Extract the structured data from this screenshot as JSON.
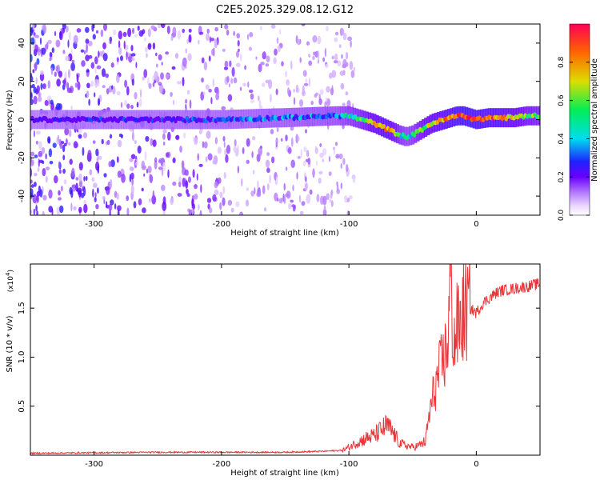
{
  "title": "C2E5.2025.329.08.12.G12",
  "chart_data": [
    {
      "type": "heatmap",
      "panel": "spectrogram",
      "xlabel": "Height of straight line (km)",
      "ylabel": "Frequency (Hz)",
      "xlim": [
        -350,
        50
      ],
      "ylim": [
        -50,
        50
      ],
      "xticks": [
        -300,
        -200,
        -100,
        0
      ],
      "xtick_labels": [
        "-300",
        "-200",
        "-100",
        "0"
      ],
      "yticks": [
        -40,
        -20,
        0,
        20,
        40
      ],
      "ytick_labels": [
        "-40",
        "-20",
        "0",
        "20",
        "40"
      ],
      "signal_track": {
        "x": [
          -350,
          -300,
          -250,
          -200,
          -150,
          -110,
          -100,
          -90,
          -80,
          -70,
          -60,
          -55,
          -50,
          -45,
          -40,
          -35,
          -30,
          -25,
          -20,
          -15,
          -10,
          -5,
          0,
          10,
          20,
          30,
          40,
          50
        ],
        "freq_hz": [
          0,
          0,
          0,
          0,
          1,
          2,
          2,
          0,
          -2,
          -5,
          -8,
          -9,
          -8,
          -6,
          -4,
          -2,
          -1,
          0,
          1,
          2,
          2,
          1,
          0,
          1,
          1,
          1,
          2,
          2
        ],
        "amplitude": [
          0.15,
          0.2,
          0.22,
          0.25,
          0.3,
          0.35,
          0.45,
          0.55,
          0.7,
          0.8,
          0.5,
          0.4,
          0.45,
          0.6,
          0.65,
          0.7,
          0.75,
          0.8,
          0.85,
          0.9,
          0.95,
          0.95,
          0.9,
          0.85,
          0.8,
          0.7,
          0.6,
          0.55
        ]
      },
      "noise_extent_km": [
        -350,
        -95
      ],
      "colorbar": {
        "label": "Normalized spectral amplitude",
        "range": [
          0,
          1
        ],
        "ticks": [
          0.0,
          0.2,
          0.4,
          0.6,
          0.8
        ],
        "tick_labels": [
          "0.0",
          "0.2",
          "0.4",
          "0.6",
          "0.8"
        ]
      }
    },
    {
      "type": "line",
      "panel": "snr",
      "xlabel": "Height of straight line (km)",
      "ylabel": "SNR (10 * v/v)",
      "multiplier_label": "(x10",
      "multiplier_exp": "4",
      "xlim": [
        -350,
        50
      ],
      "ylim": [
        0,
        1.95
      ],
      "xticks": [
        -300,
        -200,
        -100,
        0
      ],
      "xtick_labels": [
        "-300",
        "-200",
        "-100",
        "0"
      ],
      "yticks": [
        0.5,
        1.0,
        1.5
      ],
      "ytick_labels": [
        "0.5",
        "1.0",
        "1.5"
      ],
      "series": [
        {
          "name": "SNR",
          "color": "#e8363a",
          "x": [
            -350,
            -300,
            -250,
            -200,
            -150,
            -120,
            -105,
            -100,
            -95,
            -90,
            -85,
            -80,
            -75,
            -70,
            -65,
            -60,
            -55,
            -50,
            -45,
            -40,
            -37,
            -34,
            -31,
            -28,
            -25,
            -22,
            -20,
            -18,
            -15,
            -12,
            -10,
            -5,
            0,
            5,
            10,
            15,
            20,
            30,
            40,
            50
          ],
          "y": [
            0.02,
            0.025,
            0.03,
            0.03,
            0.03,
            0.04,
            0.05,
            0.08,
            0.12,
            0.15,
            0.18,
            0.2,
            0.25,
            0.3,
            0.22,
            0.12,
            0.1,
            0.08,
            0.1,
            0.14,
            0.4,
            0.6,
            0.75,
            0.9,
            1.0,
            1.2,
            1.95,
            1.1,
            1.3,
            1.35,
            1.45,
            1.5,
            1.45,
            1.55,
            1.6,
            1.65,
            1.68,
            1.7,
            1.72,
            1.75
          ]
        }
      ]
    }
  ]
}
